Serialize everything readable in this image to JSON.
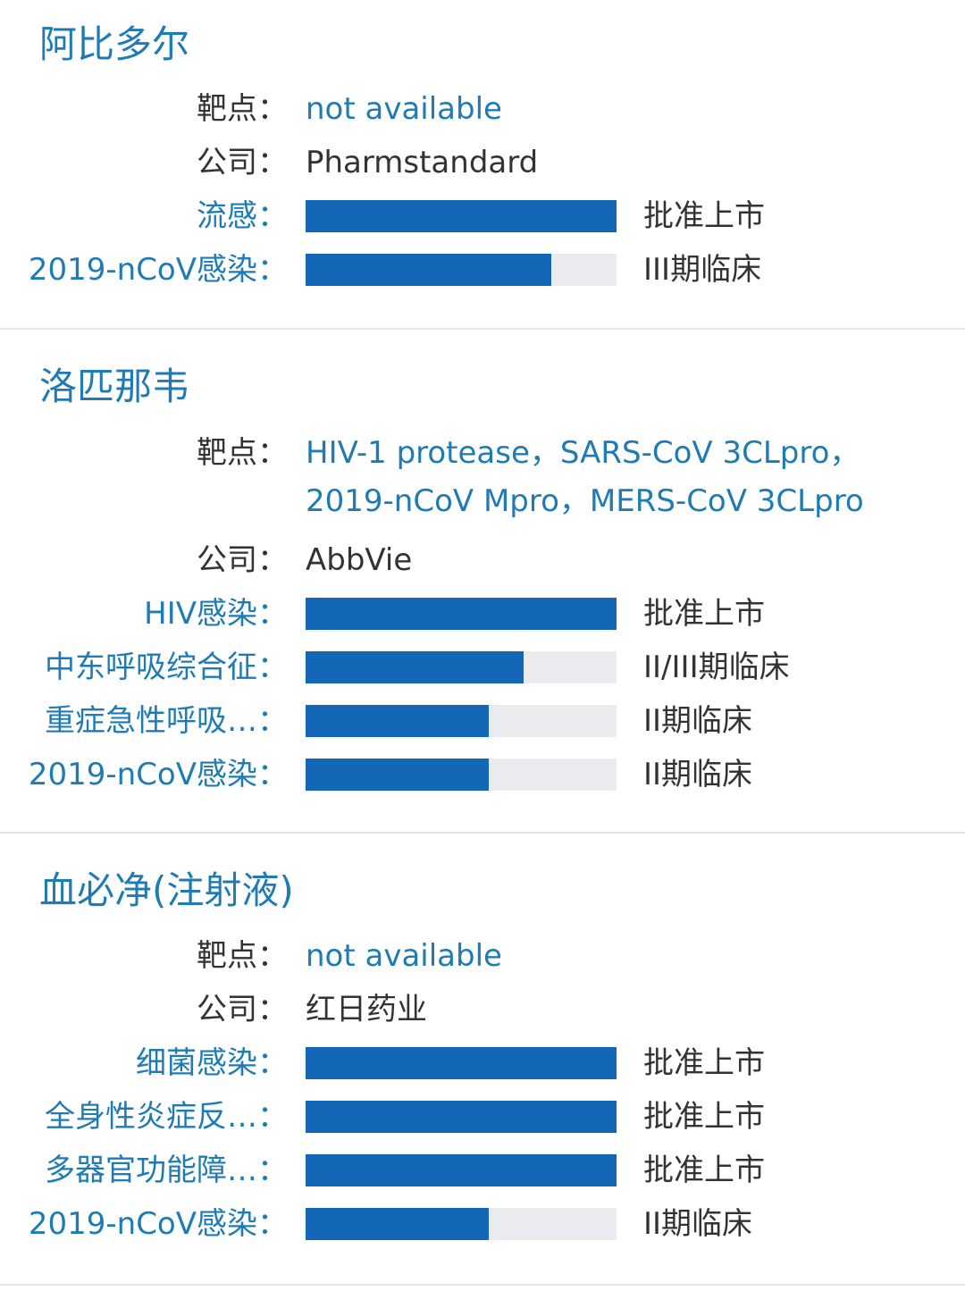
{
  "labels": {
    "target": "靶点：",
    "company": "公司："
  },
  "drugs": [
    {
      "name": "阿比多尔",
      "target": "not available",
      "company": "Pharmstandard",
      "indications": [
        {
          "name": "流感：",
          "status": "批准上市",
          "progress": 1.0
        },
        {
          "name": "2019-nCoV感染：",
          "status": "III期临床",
          "progress": 0.79
        }
      ]
    },
    {
      "name": "洛匹那韦",
      "target": "HIV-1 protease，SARS-CoV 3CLpro，2019-nCoV Mpro，MERS-CoV 3CLpro",
      "company": "AbbVie",
      "indications": [
        {
          "name": "HIV感染：",
          "status": "批准上市",
          "progress": 1.0
        },
        {
          "name": "中东呼吸综合征：",
          "status": "II/III期临床",
          "progress": 0.7
        },
        {
          "name": "重症急性呼吸…：",
          "status": "II期临床",
          "progress": 0.59
        },
        {
          "name": "2019-nCoV感染：",
          "status": "II期临床",
          "progress": 0.59
        }
      ]
    },
    {
      "name": "血必净(注射液)",
      "target": "not available",
      "company": "红日药业",
      "indications": [
        {
          "name": "细菌感染：",
          "status": "批准上市",
          "progress": 1.0
        },
        {
          "name": "全身性炎症反…：",
          "status": "批准上市",
          "progress": 1.0
        },
        {
          "name": "多器官功能障…：",
          "status": "批准上市",
          "progress": 1.0
        },
        {
          "name": "2019-nCoV感染：",
          "status": "II期临床",
          "progress": 0.59
        }
      ]
    }
  ]
}
